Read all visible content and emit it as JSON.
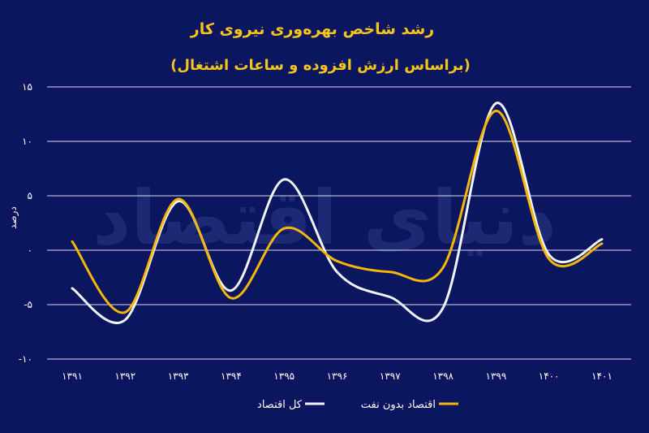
{
  "chart_data": {
    "type": "line",
    "title": "رشد شاخص بهره‌وری نیروی کار",
    "subtitle": "(براساس ارزش افزوده و ساعات اشتغال)",
    "ylabel": "درصد",
    "xlabel": "",
    "watermark": "دنیای اقتصاد",
    "categories": [
      "۱۳۹۱",
      "۱۳۹۲",
      "۱۳۹۳",
      "۱۳۹۴",
      "۱۳۹۵",
      "۱۳۹۶",
      "۱۳۹۷",
      "۱۳۹۸",
      "۱۳۹۹",
      "۱۴۰۰",
      "۱۴۰۱"
    ],
    "ylim": [
      -10,
      15
    ],
    "yticks": [
      {
        "value": 15,
        "label": "۱۵"
      },
      {
        "value": 10,
        "label": "۱۰"
      },
      {
        "value": 5,
        "label": "۵"
      },
      {
        "value": 0,
        "label": "۰"
      },
      {
        "value": -5,
        "label": "-۵"
      },
      {
        "value": -10,
        "label": "-۱۰"
      }
    ],
    "grid": true,
    "legend_position": "bottom",
    "series": [
      {
        "name": "کل اقتصاد",
        "color": "#f2f4fb",
        "values": [
          -3.5,
          -6.4,
          4.5,
          -3.7,
          6.5,
          -2.0,
          -4.3,
          -5.3,
          13.5,
          -0.4,
          1.0
        ]
      },
      {
        "name": "اقتصاد بدون نفت",
        "color": "#f5b800",
        "values": [
          0.8,
          -5.7,
          4.7,
          -4.4,
          2.0,
          -1.0,
          -2.0,
          -1.6,
          12.8,
          -0.8,
          0.6
        ]
      }
    ]
  }
}
